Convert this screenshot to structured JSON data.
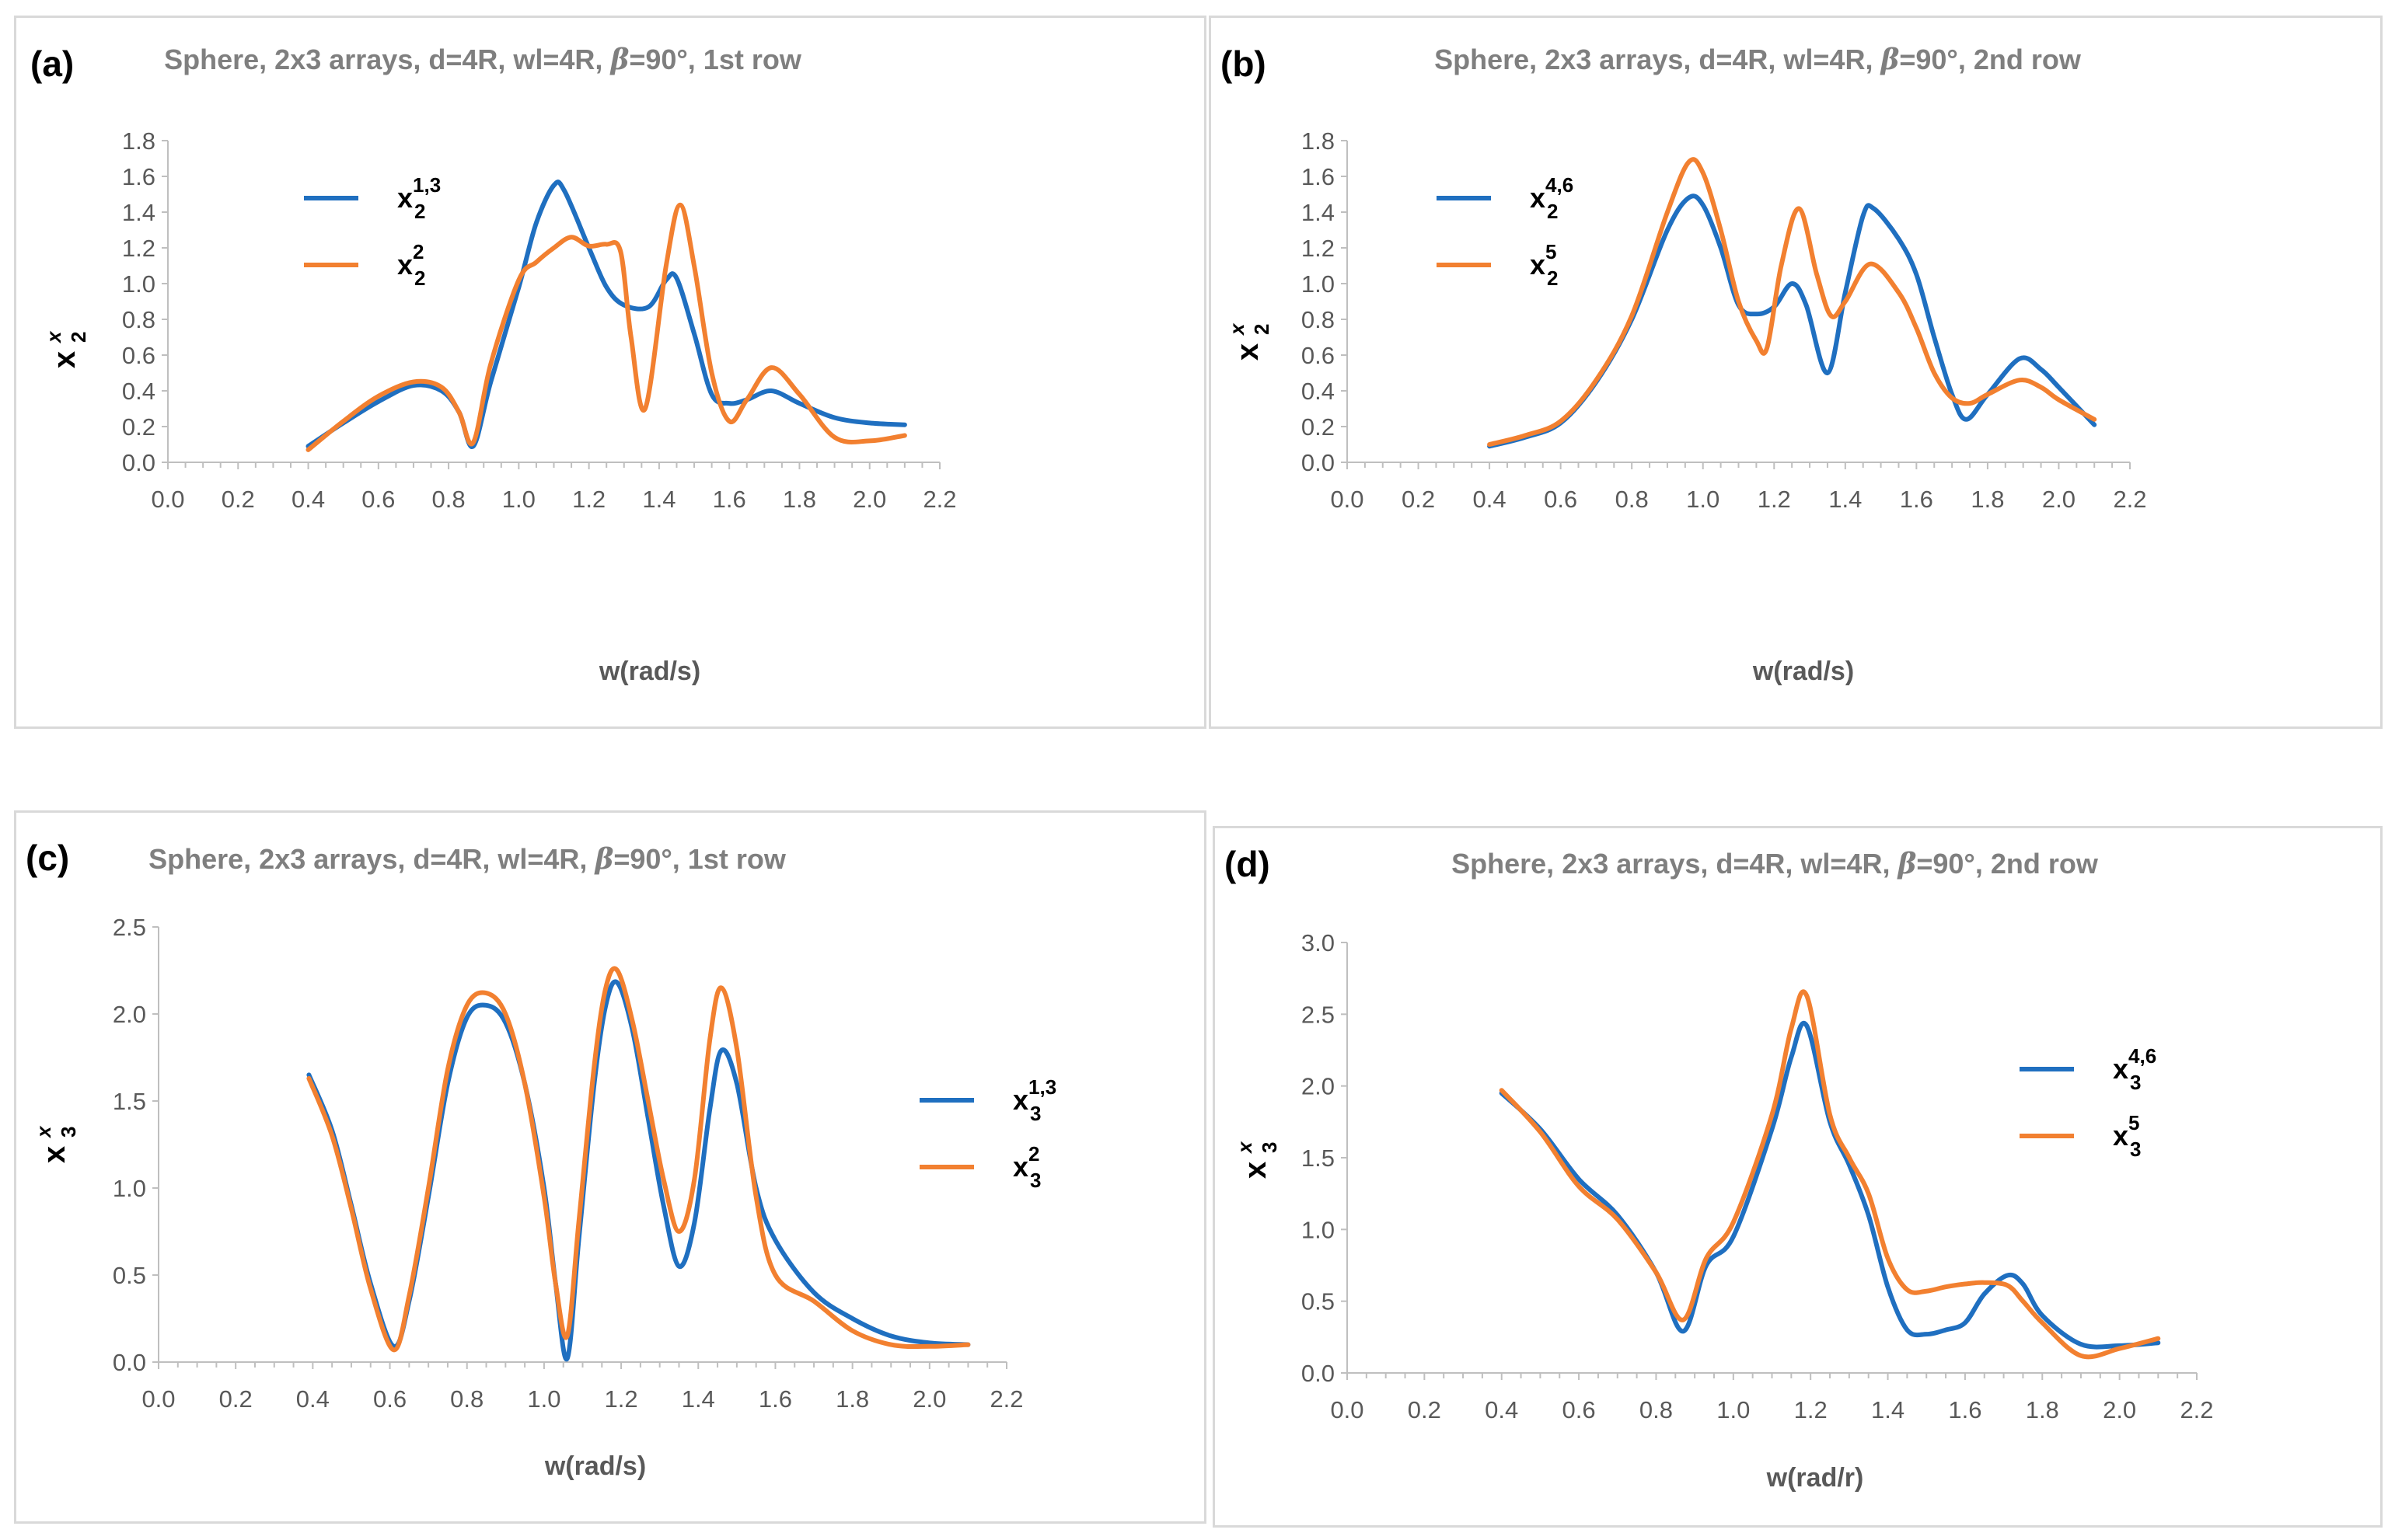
{
  "colors": {
    "series1": "#1f6fc0",
    "series2": "#f28030",
    "axis": "#bfbfbf",
    "border": "#d9d9d9"
  },
  "chart_data": [
    {
      "type": "line",
      "tag": "(a)",
      "title": "Sphere, 2x3 arrays, d=4R, wl=4R, β=90°, 1st row",
      "xlabel": "w(rad/s)",
      "ylabel": {
        "base": "x",
        "sup": "x",
        "sub": "2"
      },
      "xlim": [
        0,
        2.2
      ],
      "xticks": [
        "0.0",
        "0.2",
        "0.4",
        "0.6",
        "0.8",
        "1.0",
        "1.2",
        "1.4",
        "1.6",
        "1.8",
        "2.0",
        "2.2"
      ],
      "ylim": [
        0,
        1.8
      ],
      "yticks": [
        "0.0",
        "0.2",
        "0.4",
        "0.6",
        "0.8",
        "1.0",
        "1.2",
        "1.4",
        "1.6",
        "1.8"
      ],
      "legend_position": "top-left",
      "series": [
        {
          "name": "x",
          "sub": "2",
          "sup": "1,3",
          "x": [
            0.4,
            0.5,
            0.6,
            0.7,
            0.78,
            0.83,
            0.87,
            0.92,
            1.0,
            1.05,
            1.1,
            1.13,
            1.2,
            1.25,
            1.3,
            1.37,
            1.42,
            1.45,
            1.5,
            1.55,
            1.6,
            1.65,
            1.72,
            1.8,
            1.9,
            2.0,
            2.1
          ],
          "y": [
            0.09,
            0.22,
            0.34,
            0.43,
            0.4,
            0.28,
            0.09,
            0.45,
            0.98,
            1.34,
            1.55,
            1.52,
            1.2,
            0.98,
            0.88,
            0.87,
            1.02,
            1.03,
            0.72,
            0.38,
            0.33,
            0.35,
            0.4,
            0.33,
            0.25,
            0.22,
            0.21
          ]
        },
        {
          "name": "x",
          "sub": "2",
          "sup": "2",
          "x": [
            0.4,
            0.5,
            0.6,
            0.7,
            0.78,
            0.83,
            0.87,
            0.92,
            1.0,
            1.05,
            1.1,
            1.15,
            1.2,
            1.25,
            1.29,
            1.32,
            1.36,
            1.42,
            1.46,
            1.5,
            1.55,
            1.6,
            1.65,
            1.72,
            1.8,
            1.9,
            2.0,
            2.1
          ],
          "y": [
            0.07,
            0.23,
            0.37,
            0.45,
            0.42,
            0.28,
            0.11,
            0.55,
            1.02,
            1.12,
            1.2,
            1.26,
            1.21,
            1.22,
            1.18,
            0.7,
            0.3,
            1.1,
            1.44,
            1.1,
            0.5,
            0.23,
            0.35,
            0.53,
            0.38,
            0.14,
            0.12,
            0.15
          ]
        }
      ]
    },
    {
      "type": "line",
      "tag": "(b)",
      "title": "Sphere, 2x3 arrays, d=4R, wl=4R, β=90°, 2nd row",
      "xlabel": "w(rad/s)",
      "ylabel": {
        "base": "x",
        "sup": "x",
        "sub": "2"
      },
      "xlim": [
        0,
        2.2
      ],
      "xticks": [
        "0.0",
        "0.2",
        "0.4",
        "0.6",
        "0.8",
        "1.0",
        "1.2",
        "1.4",
        "1.6",
        "1.8",
        "2.0",
        "2.2"
      ],
      "ylim": [
        0,
        1.8
      ],
      "yticks": [
        "0.0",
        "0.2",
        "0.4",
        "0.6",
        "0.8",
        "1.0",
        "1.2",
        "1.4",
        "1.6",
        "1.8"
      ],
      "legend_position": "top-left",
      "series": [
        {
          "name": "x",
          "sub": "2",
          "sup": "4,6",
          "x": [
            0.4,
            0.5,
            0.6,
            0.7,
            0.8,
            0.9,
            0.96,
            1.0,
            1.05,
            1.1,
            1.15,
            1.2,
            1.25,
            1.29,
            1.35,
            1.4,
            1.45,
            1.48,
            1.55,
            1.6,
            1.65,
            1.7,
            1.74,
            1.8,
            1.89,
            1.95,
            2.0,
            2.1
          ],
          "y": [
            0.09,
            0.14,
            0.22,
            0.45,
            0.8,
            1.3,
            1.48,
            1.44,
            1.2,
            0.88,
            0.83,
            0.87,
            1.0,
            0.88,
            0.5,
            0.95,
            1.38,
            1.42,
            1.25,
            1.05,
            0.7,
            0.38,
            0.24,
            0.38,
            0.58,
            0.52,
            0.42,
            0.21
          ]
        },
        {
          "name": "x",
          "sub": "2",
          "sup": "5",
          "x": [
            0.4,
            0.5,
            0.6,
            0.7,
            0.8,
            0.9,
            0.96,
            1.0,
            1.05,
            1.1,
            1.15,
            1.18,
            1.22,
            1.27,
            1.32,
            1.36,
            1.4,
            1.47,
            1.55,
            1.6,
            1.65,
            1.7,
            1.75,
            1.8,
            1.89,
            1.95,
            2.0,
            2.1
          ],
          "y": [
            0.1,
            0.15,
            0.23,
            0.46,
            0.82,
            1.4,
            1.68,
            1.62,
            1.3,
            0.9,
            0.68,
            0.64,
            1.1,
            1.42,
            1.05,
            0.82,
            0.9,
            1.11,
            0.95,
            0.75,
            0.5,
            0.36,
            0.33,
            0.38,
            0.46,
            0.42,
            0.35,
            0.24
          ]
        }
      ]
    },
    {
      "type": "line",
      "tag": "(c)",
      "title": "Sphere, 2x3 arrays, d=4R, wl=4R, β=90°, 1st row",
      "xlabel": "w(rad/s)",
      "ylabel": {
        "base": "x",
        "sup": "x",
        "sub": "3"
      },
      "xlim": [
        0,
        2.2
      ],
      "xticks": [
        "0.0",
        "0.2",
        "0.4",
        "0.6",
        "0.8",
        "1.0",
        "1.2",
        "1.4",
        "1.6",
        "1.8",
        "2.0",
        "2.2"
      ],
      "ylim": [
        0,
        2.5
      ],
      "yticks": [
        "0.0",
        "0.5",
        "1.0",
        "1.5",
        "2.0",
        "2.5"
      ],
      "legend_position": "right",
      "series": [
        {
          "name": "x",
          "sub": "3",
          "sup": "1,3",
          "x": [
            0.39,
            0.45,
            0.5,
            0.55,
            0.61,
            0.65,
            0.7,
            0.75,
            0.8,
            0.85,
            0.9,
            0.95,
            1.0,
            1.03,
            1.06,
            1.09,
            1.13,
            1.16,
            1.19,
            1.23,
            1.27,
            1.31,
            1.35,
            1.39,
            1.43,
            1.46,
            1.5,
            1.55,
            1.6,
            1.7,
            1.8,
            1.9,
            2.0,
            2.1
          ],
          "y": [
            1.65,
            1.33,
            0.9,
            0.45,
            0.09,
            0.35,
            0.95,
            1.6,
            1.98,
            2.05,
            1.95,
            1.6,
            1.0,
            0.45,
            0.02,
            0.7,
            1.6,
            2.05,
            2.18,
            1.9,
            1.4,
            0.9,
            0.55,
            0.8,
            1.45,
            1.79,
            1.6,
            1.0,
            0.7,
            0.4,
            0.25,
            0.15,
            0.11,
            0.1
          ]
        },
        {
          "name": "x",
          "sub": "3",
          "sup": "2",
          "x": [
            0.39,
            0.45,
            0.5,
            0.55,
            0.61,
            0.65,
            0.7,
            0.75,
            0.8,
            0.85,
            0.9,
            0.95,
            1.0,
            1.03,
            1.06,
            1.09,
            1.13,
            1.16,
            1.19,
            1.23,
            1.27,
            1.31,
            1.35,
            1.39,
            1.43,
            1.46,
            1.5,
            1.55,
            1.6,
            1.7,
            1.8,
            1.9,
            2.0,
            2.1
          ],
          "y": [
            1.63,
            1.3,
            0.88,
            0.42,
            0.07,
            0.38,
            1.0,
            1.68,
            2.05,
            2.12,
            2.0,
            1.6,
            0.95,
            0.45,
            0.15,
            0.8,
            1.7,
            2.15,
            2.25,
            1.95,
            1.5,
            1.05,
            0.75,
            1.05,
            1.85,
            2.15,
            1.8,
            0.95,
            0.5,
            0.35,
            0.18,
            0.1,
            0.09,
            0.1
          ]
        }
      ]
    },
    {
      "type": "line",
      "tag": "(d)",
      "title": "Sphere, 2x3 arrays, d=4R, wl=4R, β=90°, 2nd row",
      "xlabel": "w(rad/r)",
      "ylabel": {
        "base": "x",
        "sup": "x",
        "sub": "3"
      },
      "xlim": [
        0,
        2.2
      ],
      "xticks": [
        "0.0",
        "0.2",
        "0.4",
        "0.6",
        "0.8",
        "1.0",
        "1.2",
        "1.4",
        "1.6",
        "1.8",
        "2.0",
        "2.2"
      ],
      "ylim": [
        0,
        3.0
      ],
      "yticks": [
        "0.0",
        "0.5",
        "1.0",
        "1.5",
        "2.0",
        "2.5",
        "3.0"
      ],
      "legend_position": "right",
      "series": [
        {
          "name": "x",
          "sub": "3",
          "sup": "4,6",
          "x": [
            0.4,
            0.5,
            0.6,
            0.7,
            0.8,
            0.87,
            0.93,
            1.0,
            1.1,
            1.15,
            1.19,
            1.25,
            1.3,
            1.35,
            1.4,
            1.45,
            1.5,
            1.55,
            1.6,
            1.65,
            1.71,
            1.75,
            1.8,
            1.9,
            2.0,
            2.1
          ],
          "y": [
            1.95,
            1.7,
            1.35,
            1.1,
            0.7,
            0.29,
            0.75,
            0.95,
            1.7,
            2.2,
            2.42,
            1.75,
            1.45,
            1.1,
            0.6,
            0.3,
            0.27,
            0.3,
            0.35,
            0.55,
            0.68,
            0.62,
            0.4,
            0.2,
            0.19,
            0.21
          ]
        },
        {
          "name": "x",
          "sub": "3",
          "sup": "5",
          "x": [
            0.4,
            0.5,
            0.6,
            0.7,
            0.8,
            0.87,
            0.93,
            1.0,
            1.1,
            1.15,
            1.19,
            1.25,
            1.3,
            1.35,
            1.4,
            1.45,
            1.5,
            1.55,
            1.6,
            1.65,
            1.71,
            1.75,
            1.8,
            1.9,
            2.0,
            2.1
          ],
          "y": [
            1.97,
            1.68,
            1.3,
            1.07,
            0.7,
            0.37,
            0.8,
            1.05,
            1.8,
            2.4,
            2.63,
            1.8,
            1.5,
            1.25,
            0.8,
            0.58,
            0.57,
            0.6,
            0.62,
            0.63,
            0.61,
            0.5,
            0.35,
            0.12,
            0.17,
            0.24
          ]
        }
      ]
    }
  ]
}
